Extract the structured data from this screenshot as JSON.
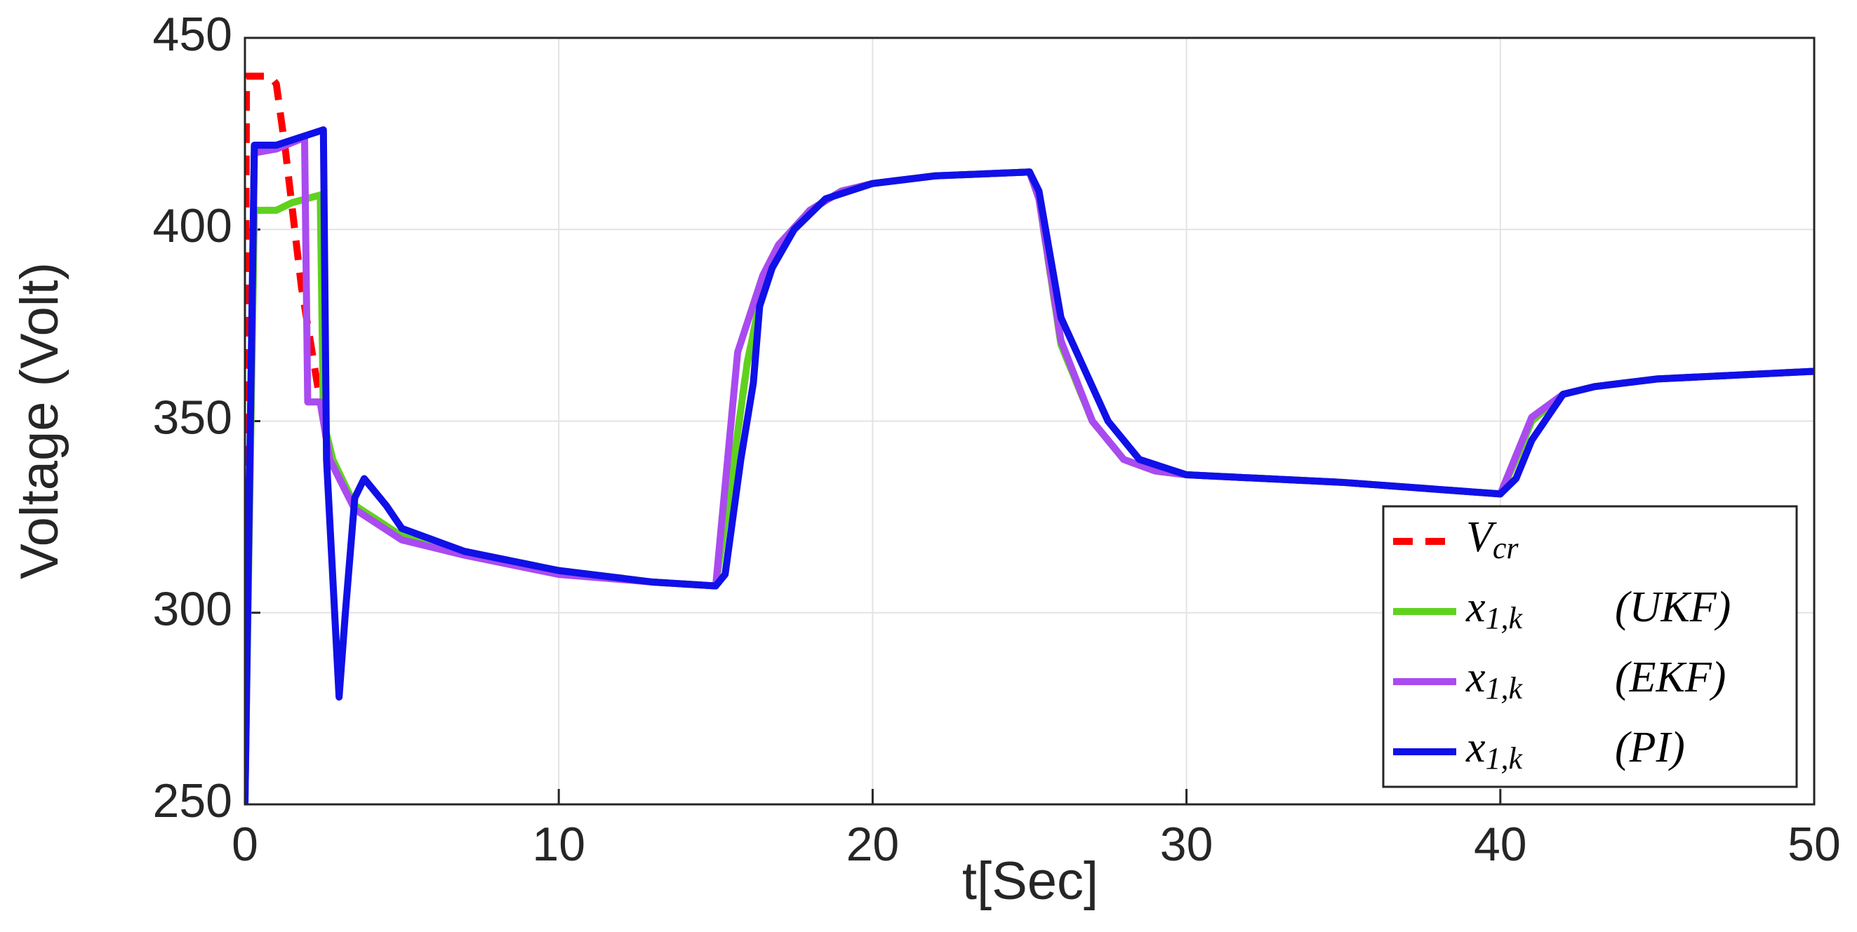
{
  "chart_data": {
    "type": "line",
    "xlabel": "t[Sec]",
    "ylabel": "Voltage (Volt)",
    "xlim": [
      0,
      50
    ],
    "xticks": [
      0,
      10,
      20,
      30,
      40,
      50
    ],
    "ylim": [
      250,
      450
    ],
    "yticks": [
      250,
      300,
      350,
      400,
      450
    ],
    "grid": true,
    "legend": "lower right",
    "series": [
      {
        "name": "V_cr",
        "color": "#ff0000",
        "dashed": true,
        "x": [
          0,
          0.05,
          0.3,
          0.8,
          1.0,
          1.3,
          1.8,
          2.3,
          2.7,
          3.5,
          5,
          7,
          10,
          13,
          15,
          15.5,
          16,
          16.5,
          17,
          18,
          19,
          20,
          22,
          25,
          25.3,
          26,
          27,
          28,
          29,
          30,
          35,
          40,
          40.5,
          41,
          42,
          43,
          45,
          50
        ],
        "values": [
          330,
          440,
          440,
          440,
          438,
          420,
          385,
          360,
          340,
          328,
          320,
          316,
          311,
          308,
          307,
          335,
          365,
          385,
          395,
          405,
          410,
          412,
          414,
          415,
          408,
          370,
          350,
          340,
          337,
          336,
          334,
          331,
          340,
          350,
          357,
          359,
          361,
          363
        ]
      },
      {
        "name": "x_1,k (UKF)",
        "color": "#5fd21e",
        "x": [
          0,
          0.3,
          1.0,
          1.5,
          2.4,
          2.5,
          2.8,
          3.5,
          5,
          7,
          10,
          13,
          15,
          15.5,
          16,
          16.5,
          17,
          18,
          19,
          20,
          22,
          25,
          25.3,
          26,
          27,
          28,
          29,
          30,
          35,
          40,
          40.5,
          41,
          42,
          43,
          45,
          50
        ],
        "values": [
          250,
          405,
          405,
          407,
          409,
          350,
          340,
          328,
          320,
          316,
          311,
          308,
          307,
          335,
          365,
          385,
          395,
          405,
          410,
          412,
          414,
          415,
          408,
          370,
          350,
          340,
          337,
          336,
          334,
          331,
          340,
          350,
          357,
          359,
          361,
          363
        ]
      },
      {
        "name": "x_1,k (EKF)",
        "color": "#a94bf0",
        "x": [
          0,
          0.3,
          1.0,
          1.9,
          2.0,
          2.4,
          2.7,
          3.5,
          5,
          7,
          10,
          13,
          15,
          15.7,
          16.5,
          17,
          18,
          19,
          20,
          22,
          25,
          25.3,
          26,
          27,
          28,
          29,
          30,
          35,
          40,
          40.5,
          41,
          42,
          43,
          45,
          50
        ],
        "values": [
          250,
          420,
          421,
          424,
          355,
          355,
          340,
          327,
          319,
          315,
          310,
          308,
          307,
          368,
          388,
          396,
          405,
          410,
          412,
          414,
          415,
          408,
          371,
          350,
          340,
          337,
          336,
          334,
          331,
          341,
          351,
          357,
          359,
          361,
          363
        ]
      },
      {
        "name": "x_1,k (PI)",
        "color": "#1010e8",
        "x": [
          0,
          0.3,
          1.0,
          2.5,
          2.6,
          3.0,
          3.2,
          3.5,
          3.8,
          4.5,
          5,
          7,
          10,
          13,
          15,
          15.3,
          15.8,
          16.2,
          16.4,
          16.8,
          17.5,
          18.5,
          20,
          22,
          25,
          25.3,
          26,
          26.5,
          27.5,
          28.5,
          30,
          35,
          40,
          40.5,
          41,
          42,
          43,
          45,
          50
        ],
        "values": [
          250,
          422,
          422,
          426,
          340,
          278,
          300,
          330,
          335,
          328,
          322,
          316,
          311,
          308,
          307,
          310,
          340,
          360,
          380,
          390,
          400,
          408,
          412,
          414,
          415,
          410,
          377,
          368,
          350,
          340,
          336,
          334,
          331,
          335,
          345,
          357,
          359,
          361,
          363
        ]
      }
    ]
  }
}
